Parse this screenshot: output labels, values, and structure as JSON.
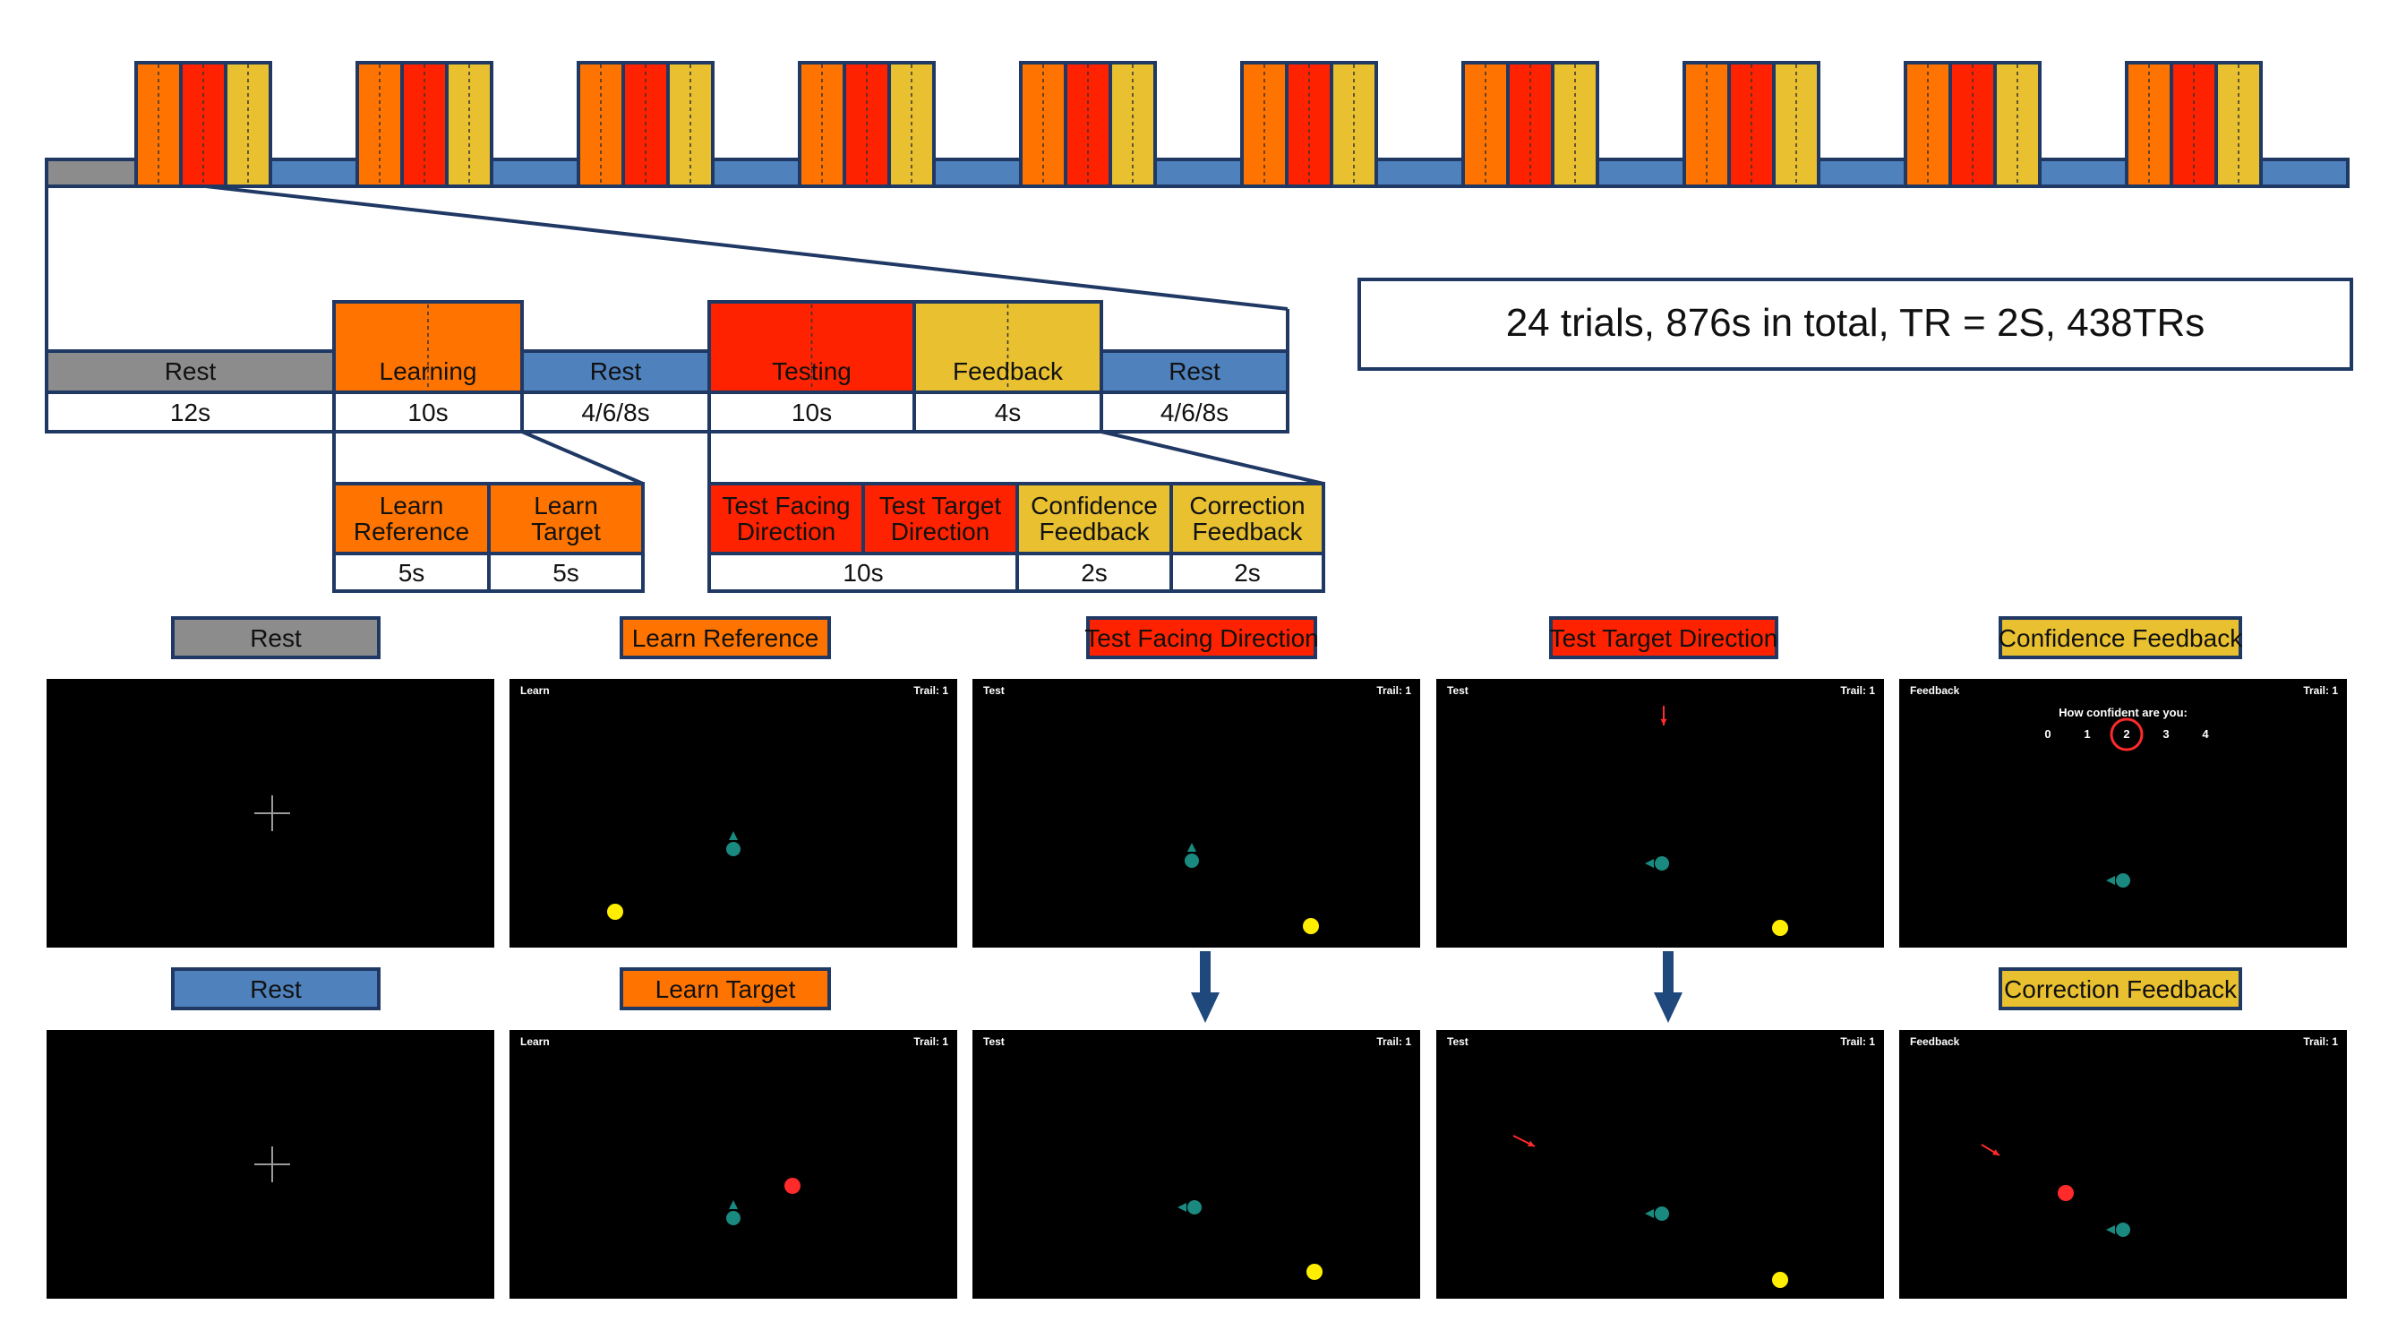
{
  "colors": {
    "rest_gray": "#8C8C8C",
    "rest_blue": "#4F81BD",
    "learning": "#FF7400",
    "testing": "#FF2200",
    "feedback": "#E8C030",
    "border": "#1F3864",
    "teal": "#1A8A80",
    "yellow_dot": "#FFEE00",
    "red_dot": "#FF2A2A"
  },
  "overview": {
    "trials_shown": 10,
    "summary": "24 trials, 876s in total, TR = 2S, 438TRs"
  },
  "trial": {
    "phases": [
      {
        "label": "Rest",
        "duration": "12s",
        "kind": "rest_gray"
      },
      {
        "label": "Learning",
        "duration": "10s",
        "kind": "learning"
      },
      {
        "label": "Rest",
        "duration": "4/6/8s",
        "kind": "rest_blue"
      },
      {
        "label": "Testing",
        "duration": "10s",
        "kind": "testing"
      },
      {
        "label": "Feedback",
        "duration": "4s",
        "kind": "feedback"
      },
      {
        "label": "Rest",
        "duration": "4/6/8s",
        "kind": "rest_blue"
      }
    ]
  },
  "learning_sub": [
    {
      "label": "Learn Reference",
      "lines": [
        "Learn",
        "Reference"
      ],
      "duration": "5s"
    },
    {
      "label": "Learn Target",
      "lines": [
        "Learn",
        "Target"
      ],
      "duration": "5s"
    }
  ],
  "testing_sub": {
    "items": [
      {
        "lines": [
          "Test Facing",
          "Direction"
        ],
        "kind": "testing"
      },
      {
        "lines": [
          "Test Target",
          "Direction"
        ],
        "kind": "testing"
      },
      {
        "lines": [
          "Confidence",
          "Feedback"
        ],
        "kind": "feedback"
      },
      {
        "lines": [
          "Correction",
          "Feedback"
        ],
        "kind": "feedback"
      }
    ],
    "durations": [
      "10s",
      "2s",
      "2s"
    ]
  },
  "screens": {
    "row1": [
      {
        "label": "Rest",
        "kind": "rest_gray",
        "header_left": "",
        "header_right": ""
      },
      {
        "label": "Learn Reference",
        "kind": "learning",
        "header_left": "Learn",
        "header_right": "Trail: 1"
      },
      {
        "label": "Test Facing Direction",
        "kind": "testing",
        "header_left": "Test",
        "header_right": "Trail: 1"
      },
      {
        "label": "Test Target Direction",
        "kind": "testing",
        "header_left": "Test",
        "header_right": "Trail: 1"
      },
      {
        "label": "Confidence Feedback",
        "kind": "feedback",
        "header_left": "Feedback",
        "header_right": "Trail: 1",
        "question": "How confident are you:",
        "scale": [
          "0",
          "1",
          "2",
          "3",
          "4"
        ],
        "selected_index": 2
      }
    ],
    "row2": [
      {
        "label": "Rest",
        "kind": "rest_blue",
        "header_left": "",
        "header_right": ""
      },
      {
        "label": "Learn Target",
        "kind": "learning",
        "header_left": "Learn",
        "header_right": "Trail: 1"
      },
      {
        "label": "",
        "kind": "",
        "header_left": "Test",
        "header_right": "Trail: 1"
      },
      {
        "label": "",
        "kind": "",
        "header_left": "Test",
        "header_right": "Trail: 1"
      },
      {
        "label": "Correction Feedback",
        "kind": "feedback",
        "header_left": "Feedback",
        "header_right": "Trail: 1"
      }
    ]
  }
}
